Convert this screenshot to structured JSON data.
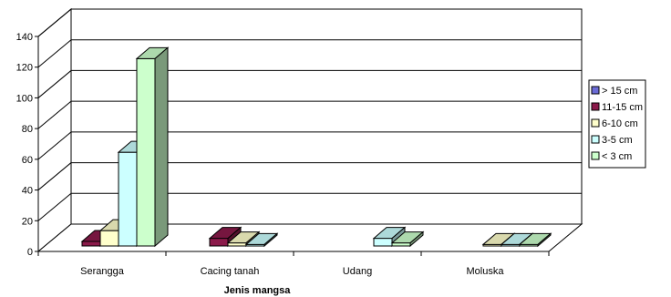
{
  "chart_data": {
    "type": "bar",
    "three_d": true,
    "title": "",
    "xlabel": "Jenis mangsa",
    "ylabel": "",
    "ylim": [
      0,
      140
    ],
    "yticks": [
      0,
      20,
      40,
      60,
      80,
      100,
      120,
      140
    ],
    "categories": [
      "Serangga",
      "Cacing tanah",
      "Udang",
      "Moluska"
    ],
    "series": [
      {
        "name": "> 15 cm",
        "color": "#6b6bd6",
        "values": [
          0,
          0,
          0,
          0
        ]
      },
      {
        "name": "11-15 cm",
        "color": "#8b1a4a",
        "values": [
          3,
          5,
          0,
          0
        ]
      },
      {
        "name": "6-10 cm",
        "color": "#ffffcc",
        "values": [
          10,
          2,
          0,
          1
        ]
      },
      {
        "name": "3-5 cm",
        "color": "#ccffff",
        "values": [
          61,
          1,
          5,
          1
        ]
      },
      {
        "name": "< 3 cm",
        "color": "#ccffcc",
        "values": [
          122,
          0,
          2,
          1
        ]
      }
    ],
    "grid": true,
    "legend_position": "right"
  }
}
